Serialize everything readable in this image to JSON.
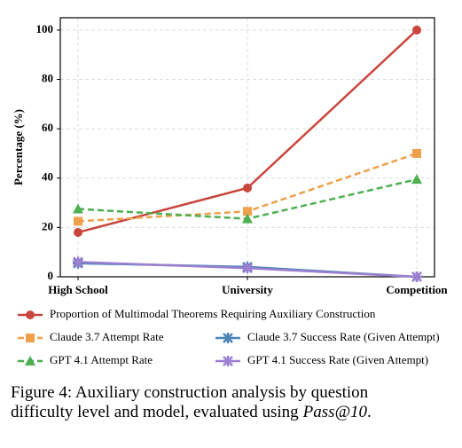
{
  "chart_data": {
    "type": "line",
    "categories": [
      "High School",
      "University",
      "Competition"
    ],
    "ylabel": "Percentage (%)",
    "ylim": [
      0,
      105
    ],
    "yticks": [
      0,
      20,
      40,
      60,
      80,
      100
    ],
    "grid": true,
    "legend": "bottom",
    "series": [
      {
        "name": "Proportion of Multimodal Theorems Requiring Auxiliary Construction",
        "color": "#c8463c",
        "marker": "circle",
        "style": "solid",
        "values": [
          18,
          36,
          100
        ]
      },
      {
        "name": "Claude 3.7 Attempt Rate",
        "color": "#f0a04b",
        "marker": "square",
        "style": "dashed",
        "values": [
          22.5,
          26.5,
          50
        ]
      },
      {
        "name": "Claude 3.7 Success Rate (Given Attempt)",
        "color": "#4a84b4",
        "marker": "star",
        "style": "solid",
        "values": [
          5.5,
          4,
          0
        ]
      },
      {
        "name": "GPT 4.1 Attempt Rate",
        "color": "#4caf50",
        "marker": "triangle",
        "style": "dashed",
        "values": [
          27.5,
          23.5,
          39.5
        ]
      },
      {
        "name": "GPT 4.1 Success Rate (Given Attempt)",
        "color": "#9b7fd0",
        "marker": "star",
        "style": "solid",
        "values": [
          6,
          3.5,
          0
        ]
      }
    ]
  },
  "caption": {
    "line1": "Figure 4:  Auxiliary construction analysis by question",
    "line2": "difficulty level and model, evaluated using",
    "emphasis": "Pass@10",
    "end": "."
  }
}
